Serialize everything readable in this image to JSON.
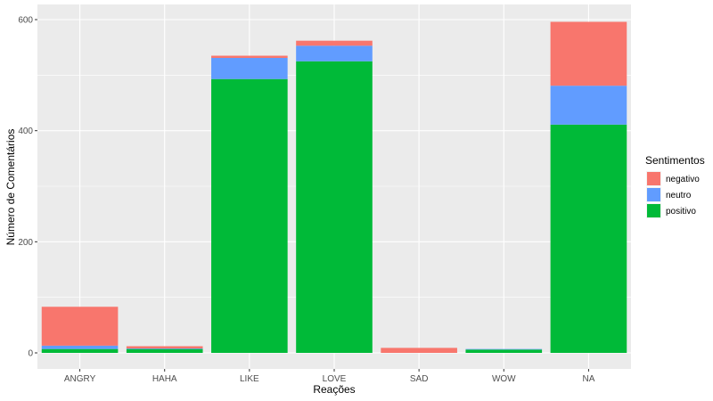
{
  "chart_data": {
    "type": "bar",
    "stacked": true,
    "categories": [
      "ANGRY",
      "HAHA",
      "LIKE",
      "LOVE",
      "SAD",
      "WOW",
      "NA"
    ],
    "series": [
      {
        "name": "negativo",
        "color": "#F8766D",
        "values": [
          70,
          4,
          4,
          9,
          9,
          0,
          115
        ]
      },
      {
        "name": "neutro",
        "color": "#619CFF",
        "values": [
          6,
          1,
          38,
          28,
          0,
          1,
          70
        ]
      },
      {
        "name": "positivo",
        "color": "#00BA38",
        "values": [
          7,
          7,
          493,
          525,
          0,
          6,
          411
        ]
      }
    ],
    "xlabel": "Reações",
    "ylabel": "Número de Comentários",
    "ylim": [
      -30,
      630
    ],
    "yticks": [
      0,
      200,
      400,
      600
    ],
    "grid": true,
    "legend_title": "Sentimentos",
    "legend_position": "right",
    "panel_background": "#EBEBEB",
    "grid_color": "#FFFFFF"
  }
}
